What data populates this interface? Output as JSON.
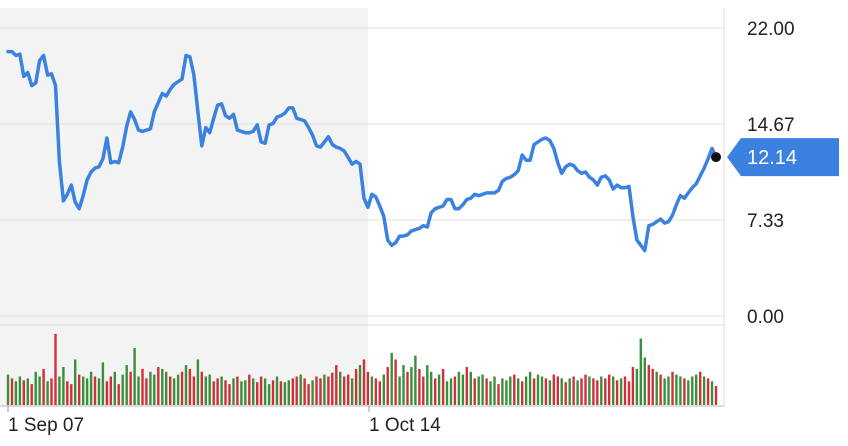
{
  "chart_data": {
    "type": "line",
    "title": "",
    "xlabel": "",
    "ylabel": "",
    "ylim": [
      0,
      22
    ],
    "y_ticks": [
      "22.00",
      "14.67",
      "7.33",
      "0.00"
    ],
    "x_ticks": [
      "1 Sep 07",
      "1 Oct 14"
    ],
    "last_value_label": "12.14",
    "grid": true,
    "colors": {
      "line": "#3b82e0",
      "up": "#3a8f3a",
      "down": "#d0303a",
      "shade": "#f3f3f3",
      "badge": "#3b82e0"
    },
    "series": [
      {
        "values": [
          20.2,
          20.2,
          19.9,
          20.0,
          18.3,
          18.6,
          17.6,
          17.8,
          19.5,
          19.9,
          18.4,
          18.5,
          17.6,
          11.8,
          8.8,
          9.3,
          10.0,
          8.7,
          8.2,
          9.2,
          10.4,
          11.0,
          11.3,
          11.4,
          12.0,
          13.6,
          11.7,
          11.8,
          11.7,
          12.9,
          14.5,
          15.6,
          15.0,
          14.2,
          14.1,
          14.2,
          14.3,
          15.6,
          16.3,
          17.0,
          16.8,
          17.3,
          17.7,
          17.9,
          18.1,
          19.9,
          19.8,
          18.4,
          15.6,
          13.0,
          14.4,
          14.0,
          15.1,
          16.1,
          16.2,
          15.3,
          15.1,
          15.4,
          14.2,
          14.1,
          14.0,
          14.0,
          14.1,
          14.6,
          13.3,
          13.2,
          14.6,
          14.7,
          15.2,
          15.3,
          15.5,
          15.9,
          15.9,
          15.1,
          15.0,
          14.9,
          14.4,
          13.8,
          13.0,
          12.9,
          13.3,
          13.7,
          13.1,
          12.9,
          12.8,
          12.6,
          12.1,
          11.6,
          11.8,
          11.6,
          9.0,
          8.3,
          9.3,
          9.1,
          8.4,
          7.6,
          5.8,
          5.4,
          5.6,
          6.1,
          6.1,
          6.2,
          6.5,
          6.6,
          6.7,
          6.9,
          6.8,
          7.9,
          8.2,
          8.3,
          8.4,
          8.9,
          8.9,
          8.2,
          8.2,
          8.5,
          8.9,
          9.0,
          9.3,
          9.2,
          9.3,
          9.4,
          9.4,
          9.4,
          9.6,
          10.3,
          10.5,
          10.6,
          10.8,
          11.1,
          12.3,
          11.9,
          11.9,
          13.1,
          13.3,
          13.5,
          13.6,
          13.4,
          12.8,
          11.7,
          10.9,
          11.4,
          11.6,
          11.5,
          11.1,
          10.9,
          11.0,
          10.6,
          10.4,
          10.0,
          10.6,
          10.7,
          10.4,
          9.7,
          10.0,
          9.8,
          9.8,
          9.9,
          7.6,
          5.8,
          5.4,
          5.0,
          6.9,
          7.0,
          7.2,
          7.4,
          7.1,
          7.2,
          7.7,
          8.5,
          9.2,
          9.0,
          9.4,
          9.8,
          10.1,
          10.7,
          11.3,
          12.0,
          12.8,
          12.14
        ],
        "volume": [
          32,
          28,
          25,
          30,
          26,
          28,
          22,
          35,
          30,
          38,
          25,
          28,
          75,
          30,
          40,
          25,
          22,
          48,
          32,
          30,
          28,
          35,
          30,
          28,
          45,
          25,
          30,
          35,
          22,
          32,
          42,
          35,
          60,
          30,
          38,
          28,
          35,
          32,
          40,
          38,
          35,
          30,
          28,
          32,
          35,
          42,
          38,
          30,
          48,
          35,
          30,
          32,
          25,
          28,
          30,
          26,
          22,
          28,
          30,
          25,
          26,
          32,
          28,
          24,
          30,
          28,
          22,
          26,
          30,
          25,
          24,
          26,
          28,
          30,
          32,
          28,
          22,
          26,
          30,
          28,
          32,
          30,
          34,
          42,
          35,
          30,
          32,
          28,
          38,
          42,
          48,
          35,
          30,
          28,
          25,
          32,
          40,
          55,
          48,
          30,
          42,
          35,
          40,
          52,
          38,
          30,
          42,
          35,
          28,
          32,
          38,
          25,
          28,
          30,
          35,
          32,
          40,
          35,
          28,
          30,
          32,
          28,
          25,
          30,
          22,
          28,
          26,
          30,
          32,
          28,
          25,
          30,
          35,
          28,
          32,
          30,
          28,
          26,
          32,
          30,
          28,
          24,
          28,
          30,
          26,
          28,
          32,
          30,
          28,
          26,
          30,
          28,
          32,
          30,
          26,
          28,
          30,
          25,
          40,
          38,
          70,
          50,
          42,
          38,
          35,
          32,
          28,
          30,
          35,
          32,
          30,
          28,
          26,
          30,
          32,
          35,
          30,
          28,
          25,
          20
        ],
        "direction": [
          "u",
          "d",
          "u",
          "u",
          "d",
          "u",
          "d",
          "u",
          "u",
          "d",
          "u",
          "d",
          "d",
          "u",
          "u",
          "d",
          "d",
          "u",
          "d",
          "u",
          "u",
          "u",
          "d",
          "u",
          "u",
          "d",
          "d",
          "u",
          "d",
          "u",
          "u",
          "d",
          "u",
          "u",
          "d",
          "d",
          "u",
          "u",
          "d",
          "u",
          "u",
          "d",
          "u",
          "u",
          "d",
          "u",
          "d",
          "d",
          "u",
          "d",
          "u",
          "u",
          "d",
          "d",
          "u",
          "d",
          "d",
          "u",
          "d",
          "u",
          "u",
          "d",
          "u",
          "d",
          "d",
          "u",
          "u",
          "d",
          "u",
          "d",
          "u",
          "u",
          "d",
          "d",
          "u",
          "d",
          "d",
          "u",
          "d",
          "d",
          "u",
          "d",
          "d",
          "d",
          "u",
          "d",
          "d",
          "u",
          "d",
          "u",
          "d",
          "d",
          "u",
          "d",
          "d",
          "u",
          "d",
          "u",
          "d",
          "u",
          "u",
          "d",
          "u",
          "u",
          "d",
          "d",
          "u",
          "u",
          "d",
          "u",
          "d",
          "u",
          "u",
          "d",
          "u",
          "u",
          "d",
          "u",
          "d",
          "u",
          "u",
          "d",
          "u",
          "u",
          "d",
          "u",
          "u",
          "u",
          "d",
          "u",
          "d",
          "u",
          "u",
          "d",
          "u",
          "u",
          "d",
          "u",
          "d",
          "d",
          "u",
          "d",
          "u",
          "d",
          "u",
          "d",
          "d",
          "u",
          "d",
          "d",
          "u",
          "d",
          "d",
          "u",
          "d",
          "u",
          "d",
          "d",
          "d",
          "u",
          "u",
          "u",
          "d",
          "d",
          "u",
          "d",
          "u",
          "u",
          "d",
          "u",
          "u",
          "d",
          "u",
          "u",
          "u",
          "d",
          "u",
          "d",
          "u",
          "d"
        ]
      }
    ]
  }
}
